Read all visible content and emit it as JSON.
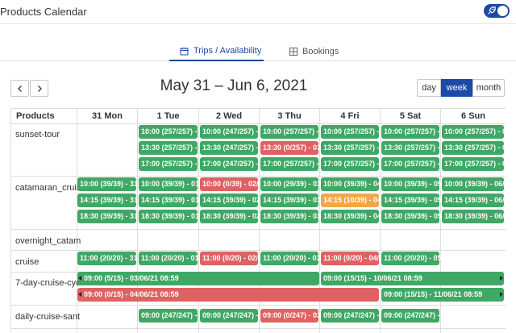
{
  "app": {
    "title": "Products Calendar"
  },
  "tabs": [
    {
      "label": "Trips / Availability",
      "icon": "calendar-icon"
    },
    {
      "label": "Bookings",
      "icon": "grid-icon"
    }
  ],
  "toolbar": {
    "range": "May 31 – Jun 6, 2021",
    "views": [
      "day",
      "week",
      "month"
    ],
    "active_view": "week"
  },
  "calendar": {
    "product_header": "Products",
    "days": [
      "31 Mon",
      "1 Tue",
      "2 Wed",
      "3 Thu",
      "4 Fri",
      "5 Sat",
      "6 Sun"
    ],
    "products": [
      "sunset-tour",
      "catamaran_cruis",
      "overnight_catam",
      "cruise",
      "7-day-cruise-cycl",
      "daily-cruise-sant"
    ],
    "events": [
      {
        "text": "10:00 (257/257) - 0",
        "status": "green"
      },
      {
        "text": "10:00 (247/257) - 0",
        "status": "green"
      },
      {
        "text": "10:00 (257/257) - 0",
        "status": "green"
      },
      {
        "text": "10:00 (257/257) - 0",
        "status": "green"
      },
      {
        "text": "10:00 (257/257) - 0",
        "status": "green"
      },
      {
        "text": "10:00 (257/257) - 06",
        "status": "green"
      },
      {
        "text": "13:30 (257/257) - 0",
        "status": "green"
      },
      {
        "text": "13:30 (247/257) - 0",
        "status": "green"
      },
      {
        "text": "13:30 (0/257) - 03/0",
        "status": "red"
      },
      {
        "text": "13:30 (257/257) - 0",
        "status": "green"
      },
      {
        "text": "13:30 (257/257) - 0",
        "status": "green"
      },
      {
        "text": "13:30 (257/257) - 06",
        "status": "green"
      },
      {
        "text": "17:00 (257/257) - 0",
        "status": "green"
      },
      {
        "text": "17:00 (247/257) - 0",
        "status": "green"
      },
      {
        "text": "17:00 (257/257) - 0",
        "status": "green"
      },
      {
        "text": "17:00 (257/257) - 0",
        "status": "green"
      },
      {
        "text": "17:00 (257/257) - 0",
        "status": "green"
      },
      {
        "text": "17:00 (257/257) - 06",
        "status": "green"
      },
      {
        "text": "10:00 (39/39) - 31/0",
        "status": "green"
      },
      {
        "text": "10:00 (39/39) - 01/0",
        "status": "green"
      },
      {
        "text": "10:00 (0/39) - 02/06",
        "status": "red"
      },
      {
        "text": "10:00 (29/39) - 03/0",
        "status": "green"
      },
      {
        "text": "10:00 (39/39) - 04/0",
        "status": "green"
      },
      {
        "text": "10:00 (39/39) - 05/0",
        "status": "green"
      },
      {
        "text": "10:00 (39/39) - 06/0",
        "status": "green"
      },
      {
        "text": "14:15 (39/39) - 31/0",
        "status": "green"
      },
      {
        "text": "14:15 (39/39) - 01/0",
        "status": "green"
      },
      {
        "text": "14:15 (39/39) - 02/0",
        "status": "green"
      },
      {
        "text": "14:15 (39/39) - 03/0",
        "status": "green"
      },
      {
        "text": "14:15 (10/39) - 04/0",
        "status": "orange"
      },
      {
        "text": "14:15 (39/39) - 05/0",
        "status": "green"
      },
      {
        "text": "14:15 (39/39) - 06/0",
        "status": "green"
      },
      {
        "text": "18:30 (39/39) - 31/0",
        "status": "green"
      },
      {
        "text": "18:30 (39/39) - 01/0",
        "status": "green"
      },
      {
        "text": "18:30 (39/39) - 02/0",
        "status": "green"
      },
      {
        "text": "18:30 (39/39) - 03/0",
        "status": "green"
      },
      {
        "text": "18:30 (39/39) - 04/0",
        "status": "green"
      },
      {
        "text": "18:30 (39/39) - 05/0",
        "status": "green"
      },
      {
        "text": "18:30 (39/39) - 06/0",
        "status": "green"
      },
      {
        "text": "11:00 (20/20) - 31/0",
        "status": "green"
      },
      {
        "text": "11:00 (20/20) - 01/0",
        "status": "green"
      },
      {
        "text": "11:00 (0/20) - 02/06",
        "status": "red"
      },
      {
        "text": "11:00 (20/20) - 03/0",
        "status": "green"
      },
      {
        "text": "11:00 (0/20) - 04/0",
        "status": "red"
      },
      {
        "text": "11:00 (20/20) - 05/0",
        "status": "green"
      },
      {
        "text": "09:00 (5/15) - 03/06/21 08:59",
        "status": "green"
      },
      {
        "text": "09:00 (15/15) - 10/06/21 08:59",
        "status": "green"
      },
      {
        "text": "09:00 (0/15) - 04/06/21 08:59",
        "status": "red"
      },
      {
        "text": "09:00 (15/15) - 11/06/21 08:59",
        "status": "green"
      },
      {
        "text": "09:00 (247/247) - 0",
        "status": "green"
      },
      {
        "text": "09:00 (247/247) - 0",
        "status": "green"
      },
      {
        "text": "09:00 (0/247) - 03/0",
        "status": "red"
      },
      {
        "text": "09:00 (247/247) - 0",
        "status": "green"
      },
      {
        "text": "09:00 (247/247) - 0",
        "status": "green"
      }
    ]
  },
  "colors": {
    "accent": "#1d49a7",
    "available": "#3fa864",
    "soldout": "#df6262",
    "limited": "#f2a64a"
  }
}
